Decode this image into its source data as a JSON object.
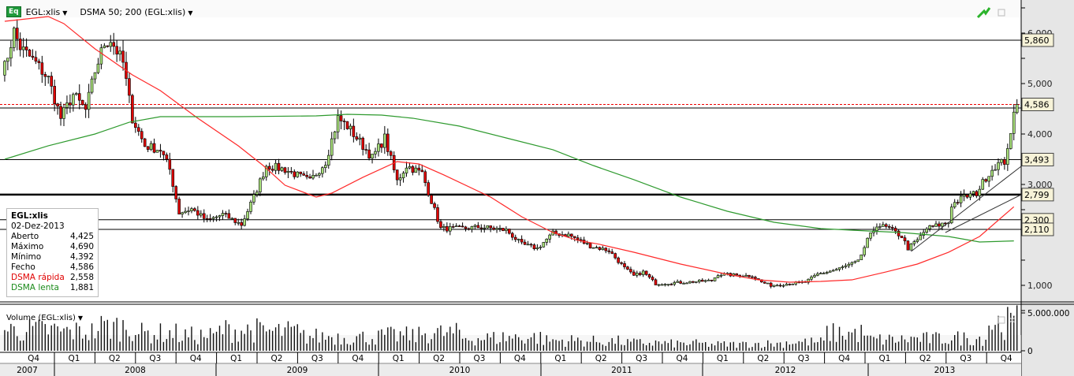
{
  "header": {
    "icon_label": "Eq",
    "symbol": "EGL:xlis",
    "indicator": "DSMA 50; 200 (EGL:xlis)"
  },
  "legend": {
    "title": "EGL:xlis",
    "date": "02-Dez-2013",
    "rows": [
      {
        "label": "Aberto",
        "value": "4,425"
      },
      {
        "label": "Máximo",
        "value": "4,690"
      },
      {
        "label": "Mínimo",
        "value": "4,392"
      },
      {
        "label": "Fecho",
        "value": "4,586"
      },
      {
        "label": "DSMA rápida",
        "value": "2,558"
      },
      {
        "label": "DSMA lenta",
        "value": "1,881"
      }
    ]
  },
  "volume_label": "Volume (EGL:xlis)",
  "colors": {
    "up": "#a8e07a",
    "down": "#e00000",
    "fast": "#ff2a2a",
    "slow": "#2e9a2e"
  },
  "chart_data": {
    "type": "candlestick",
    "ylim": [
      0,
      6600
    ],
    "y_ticks": [
      {
        "v": 6000,
        "label": "6,000"
      },
      {
        "v": 5000,
        "label": "5,000"
      },
      {
        "v": 4000,
        "label": "4,000"
      },
      {
        "v": 3000,
        "label": "3,000"
      },
      {
        "v": 1000,
        "label": "1,000"
      }
    ],
    "price_levels": [
      {
        "v": 5860,
        "label": "5,860"
      },
      {
        "v": 3493,
        "label": "3,493"
      },
      {
        "v": 2799,
        "label": "2,799",
        "thick": true
      },
      {
        "v": 2300,
        "label": "2,300"
      },
      {
        "v": 2110,
        "label": "2,110"
      },
      {
        "v": 4516,
        "label": ""
      }
    ],
    "last_price": {
      "v": 4586,
      "label": "4,586"
    },
    "last_candle": {
      "open": 4425,
      "high": 4690,
      "low": 4392,
      "close": 4586
    },
    "close_path": [
      [
        0,
        5300
      ],
      [
        1,
        5328
      ],
      [
        4,
        6031
      ],
      [
        6,
        5719
      ],
      [
        11,
        5406
      ],
      [
        15,
        5094
      ],
      [
        19,
        4313
      ],
      [
        23,
        4781
      ],
      [
        27,
        4469
      ],
      [
        30,
        5250
      ],
      [
        33,
        5797
      ],
      [
        35,
        5875
      ],
      [
        39,
        5406
      ],
      [
        42,
        4313
      ],
      [
        46,
        3766
      ],
      [
        51,
        3688
      ],
      [
        54,
        3297
      ],
      [
        57,
        2438
      ],
      [
        61,
        2516
      ],
      [
        66,
        2281
      ],
      [
        71,
        2406
      ],
      [
        77,
        2203
      ],
      [
        81,
        2750
      ],
      [
        85,
        3375
      ],
      [
        91,
        3297
      ],
      [
        99,
        3063
      ],
      [
        104,
        3453
      ],
      [
        108,
        4313
      ],
      [
        111,
        4156
      ],
      [
        115,
        3844
      ],
      [
        119,
        3531
      ],
      [
        123,
        3922
      ],
      [
        127,
        3063
      ],
      [
        130,
        3375
      ],
      [
        135,
        3219
      ],
      [
        138,
        2672
      ],
      [
        141,
        2125
      ],
      [
        147,
        2125
      ],
      [
        154,
        2156
      ],
      [
        162,
        2094
      ],
      [
        167,
        1813
      ],
      [
        172,
        1734
      ],
      [
        177,
        2031
      ],
      [
        182,
        2000
      ],
      [
        189,
        1781
      ],
      [
        195,
        1688
      ],
      [
        200,
        1344
      ],
      [
        203,
        1188
      ],
      [
        206,
        1266
      ],
      [
        210,
        1031
      ],
      [
        220,
        1063
      ],
      [
        228,
        1094
      ],
      [
        230,
        1219
      ],
      [
        241,
        1188
      ],
      [
        244,
        1063
      ],
      [
        247,
        1000
      ],
      [
        258,
        1063
      ],
      [
        262,
        1219
      ],
      [
        268,
        1313
      ],
      [
        275,
        1469
      ],
      [
        278,
        1891
      ],
      [
        281,
        2203
      ],
      [
        285,
        2125
      ],
      [
        289,
        1969
      ],
      [
        291,
        1734
      ],
      [
        294,
        1891
      ],
      [
        297,
        2125
      ],
      [
        304,
        2250
      ],
      [
        305,
        2594
      ],
      [
        309,
        2750
      ],
      [
        313,
        2828
      ],
      [
        316,
        3141
      ],
      [
        319,
        3375
      ],
      [
        322,
        3453
      ],
      [
        323,
        3766
      ],
      [
        324,
        3922
      ],
      [
        325,
        4391
      ]
    ],
    "series": [
      {
        "name": "DSMA rápida",
        "points": [
          [
            1,
            6234
          ],
          [
            15,
            6328
          ],
          [
            20,
            6188
          ],
          [
            30,
            5688
          ],
          [
            42,
            5172
          ],
          [
            51,
            4859
          ],
          [
            63,
            4313
          ],
          [
            76,
            3766
          ],
          [
            84,
            3375
          ],
          [
            91,
            2984
          ],
          [
            101,
            2750
          ],
          [
            106,
            2828
          ],
          [
            116,
            3141
          ],
          [
            127,
            3453
          ],
          [
            134,
            3406
          ],
          [
            142,
            3188
          ],
          [
            157,
            2750
          ],
          [
            167,
            2359
          ],
          [
            177,
            2047
          ],
          [
            185,
            1891
          ],
          [
            192,
            1813
          ],
          [
            203,
            1656
          ],
          [
            218,
            1422
          ],
          [
            233,
            1219
          ],
          [
            243,
            1109
          ],
          [
            253,
            1063
          ],
          [
            263,
            1078
          ],
          [
            273,
            1109
          ],
          [
            284,
            1266
          ],
          [
            294,
            1422
          ],
          [
            304,
            1656
          ],
          [
            314,
            1969
          ],
          [
            325,
            2558
          ]
        ]
      },
      {
        "name": "DSMA lenta",
        "points": [
          [
            1,
            3500
          ],
          [
            15,
            3766
          ],
          [
            30,
            4000
          ],
          [
            41,
            4234
          ],
          [
            51,
            4344
          ],
          [
            63,
            4344
          ],
          [
            76,
            4344
          ],
          [
            101,
            4359
          ],
          [
            111,
            4391
          ],
          [
            122,
            4375
          ],
          [
            132,
            4313
          ],
          [
            147,
            4156
          ],
          [
            162,
            3922
          ],
          [
            177,
            3688
          ],
          [
            190,
            3375
          ],
          [
            203,
            3094
          ],
          [
            218,
            2750
          ],
          [
            233,
            2469
          ],
          [
            248,
            2250
          ],
          [
            263,
            2125
          ],
          [
            278,
            2078
          ],
          [
            289,
            2047
          ],
          [
            304,
            1969
          ],
          [
            314,
            1859
          ],
          [
            325,
            1881
          ]
        ]
      }
    ],
    "trendlines": [
      [
        [
          292,
          1672
        ],
        [
          328,
          3360
        ]
      ],
      [
        [
          303,
          2047
        ],
        [
          328,
          2797
        ]
      ]
    ],
    "volume": {
      "ylim": [
        0,
        6000000
      ],
      "ticks": [
        {
          "v": 5000000,
          "label": "5.000.000"
        },
        {
          "v": 0,
          "label": "0"
        }
      ],
      "quarter_avg_millions": [
        2.6,
        2.4,
        3.0,
        2.2,
        1.9,
        2.6,
        2.4,
        1.8,
        1.7,
        1.9,
        2.2,
        1.6,
        1.7,
        1.3,
        1.2,
        1.0,
        0.9,
        0.8,
        0.9,
        1.1,
        2.2,
        1.4,
        1.5,
        1.6,
        3.5
      ]
    },
    "quarters": [
      "Q4",
      "Q1",
      "Q2",
      "Q3",
      "Q4",
      "Q1",
      "Q2",
      "Q3",
      "Q4",
      "Q1",
      "Q2",
      "Q3",
      "Q4",
      "Q1",
      "Q2",
      "Q3",
      "Q4",
      "Q1",
      "Q2",
      "Q3",
      "Q4",
      "Q1",
      "Q2",
      "Q3",
      "Q4"
    ],
    "years": [
      "2007",
      "2008",
      "2009",
      "2010",
      "2011",
      "2012",
      "2013"
    ]
  }
}
